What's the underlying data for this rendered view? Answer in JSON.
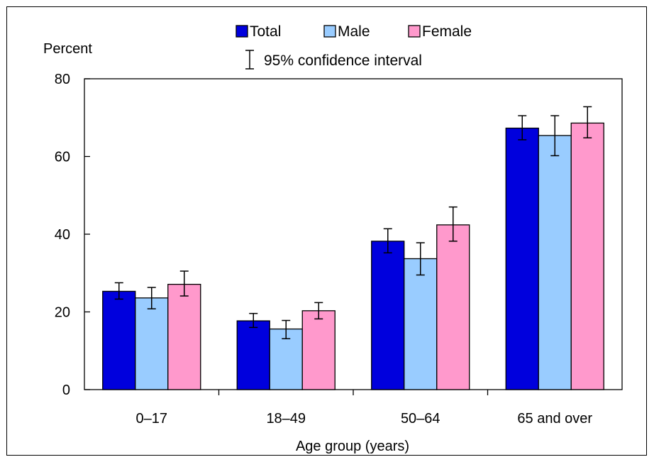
{
  "chart_data": {
    "type": "bar",
    "ylabel": "Percent",
    "xlabel": "Age group (years)",
    "ylim": [
      0,
      80
    ],
    "yticks": [
      0,
      20,
      40,
      60,
      80
    ],
    "categories": [
      "0–17",
      "18–49",
      "50–64",
      "65 and over"
    ],
    "series": [
      {
        "name": "Total",
        "color": "#0000dd",
        "values": [
          25.3,
          17.7,
          38.2,
          67.3
        ],
        "ci_low": [
          23.3,
          16.0,
          35.2,
          64.3
        ],
        "ci_high": [
          27.5,
          19.6,
          41.4,
          70.5
        ]
      },
      {
        "name": "Male",
        "color": "#99ccff",
        "values": [
          23.6,
          15.6,
          33.7,
          65.4
        ],
        "ci_low": [
          20.8,
          13.1,
          29.5,
          60.2
        ],
        "ci_high": [
          26.3,
          17.8,
          37.8,
          70.5
        ]
      },
      {
        "name": "Female",
        "color": "#ff99cc",
        "values": [
          27.1,
          20.3,
          42.4,
          68.6
        ],
        "ci_low": [
          24.1,
          18.2,
          38.2,
          64.8
        ],
        "ci_high": [
          30.5,
          22.4,
          47.0,
          72.8
        ]
      }
    ],
    "legend": {
      "position": "top",
      "ci_label": "95% confidence interval"
    },
    "grid": false
  }
}
